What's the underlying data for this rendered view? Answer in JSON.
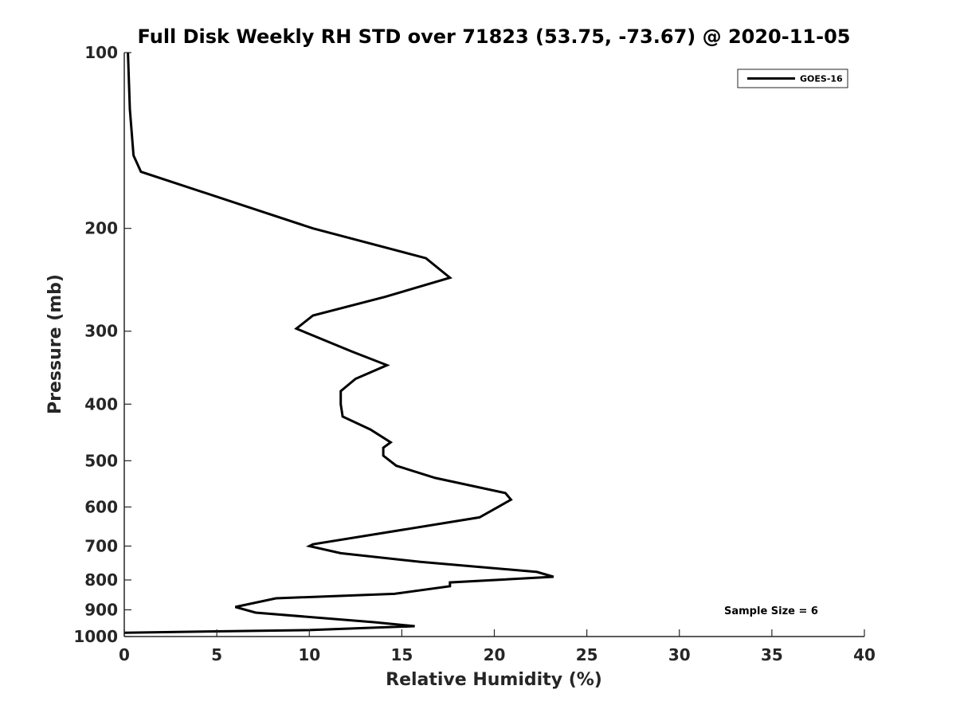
{
  "chart_data": {
    "type": "line",
    "title": "Full Disk Weekly RH STD over 71823 (53.75, -73.67) @ 2020-11-05",
    "xlabel": "Relative Humidity (%)",
    "ylabel": "Pressure (mb)",
    "xlim": [
      0,
      40
    ],
    "ylim": [
      100,
      1000
    ],
    "y_scale": "log",
    "y_inverted": true,
    "x_ticks": [
      0,
      5,
      10,
      15,
      20,
      25,
      30,
      35,
      40
    ],
    "y_ticks": [
      100,
      200,
      300,
      400,
      500,
      600,
      700,
      800,
      900,
      1000
    ],
    "grid": false,
    "legend": {
      "position": "top-right",
      "entries": [
        "GOES-16"
      ]
    },
    "annotation": "Sample Size = 6",
    "series": [
      {
        "name": "GOES-16",
        "color": "#000000",
        "points": [
          [
            0.2,
            100
          ],
          [
            0.3,
            125
          ],
          [
            0.5,
            150
          ],
          [
            0.9,
            160
          ],
          [
            10.2,
            200
          ],
          [
            16.3,
            225
          ],
          [
            17.6,
            243
          ],
          [
            14.1,
            262
          ],
          [
            10.2,
            282
          ],
          [
            9.3,
            297
          ],
          [
            12.3,
            325
          ],
          [
            14.2,
            343
          ],
          [
            12.5,
            362
          ],
          [
            11.7,
            380
          ],
          [
            11.7,
            400
          ],
          [
            11.8,
            420
          ],
          [
            13.3,
            442
          ],
          [
            14.4,
            465
          ],
          [
            14.0,
            475
          ],
          [
            14.0,
            490
          ],
          [
            14.7,
            510
          ],
          [
            16.8,
            535
          ],
          [
            20.6,
            568
          ],
          [
            20.9,
            583
          ],
          [
            20.2,
            600
          ],
          [
            19.2,
            625
          ],
          [
            10.2,
            695
          ],
          [
            10.0,
            700
          ],
          [
            11.7,
            720
          ],
          [
            16.0,
            745
          ],
          [
            22.3,
            775
          ],
          [
            23.2,
            790
          ],
          [
            17.6,
            808
          ],
          [
            17.6,
            820
          ],
          [
            14.6,
            845
          ],
          [
            8.2,
            860
          ],
          [
            6.0,
            890
          ],
          [
            7.1,
            910
          ],
          [
            13.5,
            945
          ],
          [
            15.7,
            960
          ],
          [
            10.0,
            975
          ],
          [
            0.0,
            985
          ]
        ]
      }
    ]
  }
}
